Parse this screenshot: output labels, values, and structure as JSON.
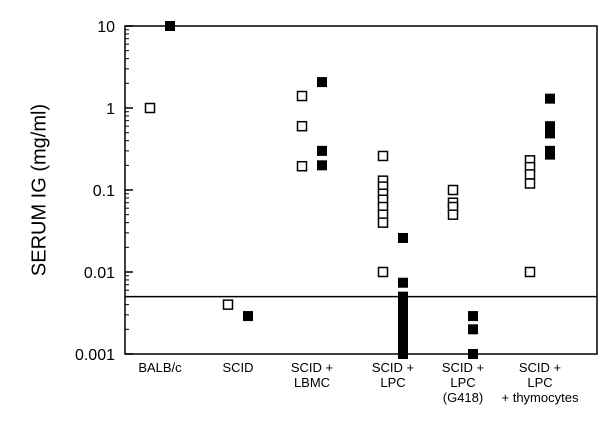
{
  "chart_data": {
    "type": "scatter",
    "y_label": "SERUM IG (mg/ml)",
    "categories": [
      [
        "BALB/c"
      ],
      [
        "SCID"
      ],
      [
        "SCID +",
        "LBMC"
      ],
      [
        "SCID +",
        "LPC"
      ],
      [
        "SCID +",
        "LPC",
        "(G418)"
      ],
      [
        "SCID +",
        "LPC",
        "+ thymocytes"
      ]
    ],
    "ylim": [
      0.001,
      10
    ],
    "yticks": [
      10,
      1,
      0.1,
      0.01,
      0.001
    ],
    "log_y": true,
    "reference_line": 0.005,
    "series": [
      {
        "marker": "open",
        "color": "#000000",
        "x": [
          0,
          1,
          2,
          2,
          2,
          3,
          3,
          3,
          3,
          3,
          3,
          3,
          3,
          3,
          4,
          4,
          4,
          4,
          5,
          5,
          5,
          5,
          5
        ],
        "values": [
          1,
          0.004,
          1.4,
          0.6,
          0.195,
          0.26,
          0.13,
          0.11,
          0.09,
          0.076,
          0.062,
          0.05,
          0.04,
          0.01,
          0.1,
          0.07,
          0.062,
          0.05,
          0.23,
          0.19,
          0.155,
          0.12,
          0.01
        ]
      },
      {
        "marker": "filled",
        "color": "#000000",
        "x": [
          0,
          1,
          2,
          2,
          2,
          3,
          3,
          3,
          3,
          3,
          3,
          3,
          3,
          3,
          3,
          3,
          3,
          4,
          4,
          4,
          5,
          5,
          5,
          5,
          5,
          5
        ],
        "values": [
          10,
          0.0029,
          2.07,
          0.3,
          0.2,
          0.026,
          0.0074,
          0.005,
          0.004,
          0.0035,
          0.003,
          0.0025,
          0.002,
          0.0017,
          0.0015,
          0.0012,
          0.001,
          0.0029,
          0.002,
          0.001,
          1.3,
          0.6,
          0.53,
          0.49,
          0.3,
          0.27
        ]
      }
    ]
  }
}
